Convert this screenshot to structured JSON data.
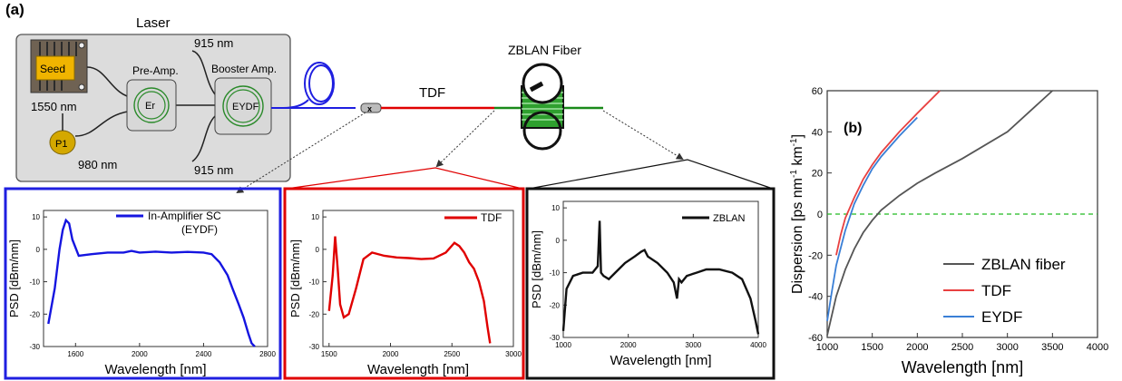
{
  "panel_a_label": "(a)",
  "panel_b_label": "(b)",
  "laser": {
    "title": "Laser",
    "seed_label": "Seed",
    "seed_wavelength": "1550 nm",
    "pump_label": "P1",
    "pump_wavelength": "980 nm",
    "preamp_label": "Pre-Amp.",
    "preamp_core": "Er",
    "booster_label": "Booster Amp.",
    "booster_core": "EYDF",
    "pump_top_wavelength": "915 nm",
    "pump_bottom_wavelength": "915 nm"
  },
  "setup": {
    "tdf_label": "TDF",
    "zblan_fiber_label": "ZBLAN Fiber"
  },
  "colors": {
    "laser_box_fill": "#dcdcdc",
    "seed_fill": "#f0b400",
    "pump_fill": "#d4a800",
    "eydf_color": "#1f1fe0",
    "tdf_color": "#e00000",
    "zblan_color": "#1a8a1a",
    "zero_line": "#22bb22",
    "chart_zblan": "#555555",
    "chart_tdf": "#e84040",
    "chart_eydf": "#3a7fd6"
  },
  "chart_data": [
    {
      "id": "psd-eydf",
      "type": "line",
      "legend": "In-Amplifier SC",
      "legend_sub": "(EYDF)",
      "xlabel": "Wavelength [nm]",
      "ylabel": "PSD [dBm/nm]",
      "xlim": [
        1400,
        2800
      ],
      "ylim": [
        -30,
        12
      ],
      "xticks": [
        1600,
        2000,
        2400,
        2800
      ],
      "xtick_labels": [
        "1600",
        "2000",
        "2400",
        "2800"
      ],
      "yticks": [
        10,
        0,
        -10,
        -20,
        -30
      ],
      "color": "#1515e0",
      "x": [
        1430,
        1470,
        1500,
        1520,
        1540,
        1560,
        1580,
        1620,
        1700,
        1800,
        1900,
        1950,
        2000,
        2100,
        2200,
        2300,
        2400,
        2450,
        2500,
        2550,
        2580,
        2620,
        2650,
        2680,
        2700,
        2720
      ],
      "y": [
        -23,
        -12,
        0,
        6,
        9,
        8,
        3,
        -2,
        -1.5,
        -1,
        -1,
        -0.5,
        -1,
        -0.7,
        -1,
        -0.8,
        -1,
        -1.5,
        -4,
        -8,
        -12,
        -17,
        -21,
        -26,
        -29,
        -30
      ]
    },
    {
      "id": "psd-tdf",
      "type": "line",
      "legend": "TDF",
      "xlabel": "Wavelength [nm]",
      "ylabel": "PSD [dBm/nm]",
      "xlim": [
        1450,
        3000
      ],
      "ylim": [
        -30,
        12
      ],
      "xticks": [
        1500,
        2000,
        2500,
        3000
      ],
      "xtick_labels": [
        "1500",
        "2000",
        "2500",
        "3000"
      ],
      "yticks": [
        10,
        0,
        -10,
        -20,
        -30
      ],
      "color": "#e00000",
      "x": [
        1500,
        1530,
        1550,
        1570,
        1590,
        1620,
        1660,
        1720,
        1780,
        1850,
        1950,
        2050,
        2150,
        2250,
        2350,
        2450,
        2520,
        2560,
        2600,
        2640,
        2680,
        2720,
        2760,
        2790,
        2810
      ],
      "y": [
        -19,
        -8,
        4,
        -6,
        -17,
        -21,
        -20,
        -12,
        -3,
        -1,
        -2,
        -2.5,
        -2.7,
        -3,
        -2.8,
        -1,
        2,
        1,
        -1,
        -4,
        -6,
        -10,
        -16,
        -24,
        -29
      ]
    },
    {
      "id": "psd-zblan",
      "type": "line",
      "legend": "ZBLAN",
      "xlabel": "Wavelength [nm]",
      "ylabel": "PSD [dBm/nm]",
      "xlim": [
        1000,
        4000
      ],
      "ylim": [
        -30,
        12
      ],
      "xticks": [
        1000,
        2000,
        3000,
        4000
      ],
      "xtick_labels": [
        "1000",
        "2000",
        "3000",
        "4000"
      ],
      "yticks": [
        10,
        0,
        -10,
        -20,
        -30
      ],
      "color": "#111111",
      "x": [
        1000,
        1050,
        1150,
        1300,
        1450,
        1530,
        1560,
        1580,
        1620,
        1700,
        1800,
        1950,
        2100,
        2200,
        2250,
        2300,
        2450,
        2600,
        2700,
        2750,
        2780,
        2820,
        2900,
        3050,
        3200,
        3400,
        3600,
        3750,
        3880,
        3960,
        4000
      ],
      "y": [
        -28,
        -15,
        -11,
        -10,
        -10,
        -8,
        6,
        -10,
        -11,
        -12,
        -10,
        -7,
        -5,
        -3.5,
        -3,
        -5,
        -7,
        -10,
        -13,
        -18,
        -12,
        -13,
        -11,
        -10,
        -9,
        -9,
        -10,
        -12,
        -18,
        -25,
        -29
      ]
    },
    {
      "id": "dispersion",
      "type": "line",
      "xlabel": "Wavelength [nm]",
      "ylim": [
        -60,
        60
      ],
      "xlim": [
        1000,
        4000
      ],
      "xticks": [
        1000,
        1500,
        2000,
        2500,
        3000,
        3500,
        4000
      ],
      "yticks": [
        60,
        40,
        20,
        0,
        -20,
        -40,
        -60
      ],
      "series": [
        {
          "name": "ZBLAN fiber",
          "color": "#555555",
          "x": [
            1000,
            1100,
            1200,
            1300,
            1400,
            1500,
            1600,
            1800,
            2000,
            2200,
            2500,
            3000,
            3500
          ],
          "y": [
            -59,
            -40,
            -27,
            -17,
            -9,
            -3,
            2,
            9,
            15,
            20,
            27,
            40,
            60
          ]
        },
        {
          "name": "TDF",
          "color": "#e84040",
          "x": [
            1100,
            1150,
            1200,
            1300,
            1400,
            1500,
            1600,
            1800,
            2000,
            2250
          ],
          "y": [
            -20,
            -10,
            -2,
            8,
            17,
            24,
            30,
            40,
            49,
            60
          ]
        },
        {
          "name": "EYDF",
          "color": "#3a7fd6",
          "x": [
            1000,
            1050,
            1100,
            1200,
            1300,
            1400,
            1500,
            1600,
            1800,
            2000
          ],
          "y": [
            -52,
            -38,
            -25,
            -8,
            5,
            14,
            22,
            28,
            38,
            47
          ]
        }
      ],
      "zero_line": true,
      "legend_position": "bottom-right",
      "ylabel_parts": [
        "Dispersion [ps nm",
        "-1",
        " km",
        "-1",
        "]"
      ]
    }
  ]
}
